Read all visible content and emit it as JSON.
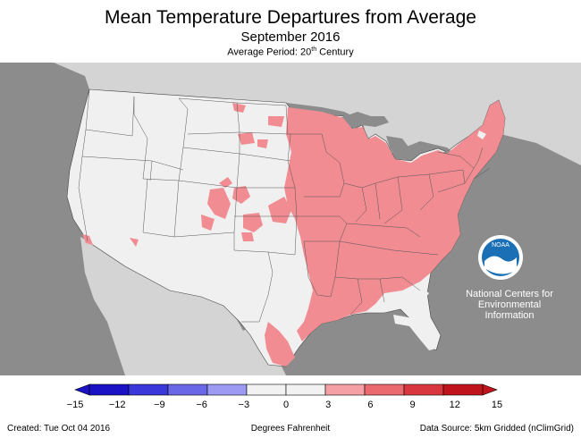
{
  "title": "Mean Temperature Departures from Average",
  "subtitle": "September 2016",
  "period_prefix": "Average Period: 20",
  "period_sup": "th",
  "period_suffix": " Century",
  "logo": {
    "wordmark": "NOAA",
    "icon": "noaa-bird-icon"
  },
  "ncei_lines": [
    "National Centers for",
    "Environmental",
    "Information"
  ],
  "legend": {
    "ticks": [
      "−15",
      "−12",
      "−9",
      "−6",
      "−3",
      "0",
      "3",
      "6",
      "9",
      "12",
      "15"
    ],
    "colors": [
      "#1a12c4",
      "#3a38d8",
      "#6a68e6",
      "#9c9af2",
      "#f2f2f2",
      "#f2f2f2",
      "#f4a0a4",
      "#ea6a70",
      "#d9373f",
      "#c0141c"
    ],
    "units": "Degrees Fahrenheit"
  },
  "footer": {
    "created": "Created: Tue Oct 04 2016",
    "source": "Data Source: 5km Gridded (nClimGrid)"
  },
  "colors": {
    "land": "#f0f0f0",
    "outside": "#8c8c8c",
    "canada_mexico": "#d4d4d4",
    "water": "#8c8c8c",
    "warm": "#f08c92"
  }
}
